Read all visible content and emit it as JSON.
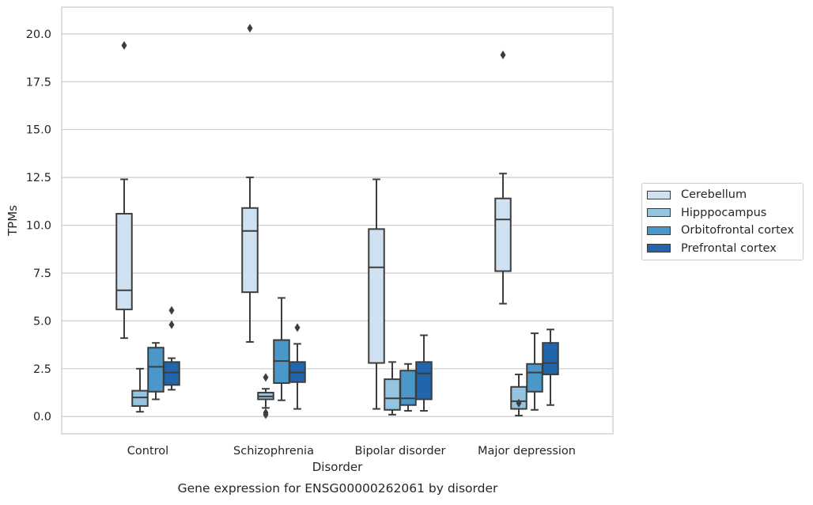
{
  "chart_data": {
    "type": "box",
    "title": "Gene expression for ENSG00000262061 by disorder",
    "xlabel": "Disorder",
    "ylabel": "TPMs",
    "ylim": [
      -0.9,
      21.4
    ],
    "yticks": [
      "0.0",
      "2.5",
      "5.0",
      "7.5",
      "10.0",
      "12.5",
      "15.0",
      "17.5",
      "20.0"
    ],
    "grid": "horizontal",
    "legend_position": "right",
    "categories": [
      "Control",
      "Schizophrenia",
      "Bipolar disorder",
      "Major depression"
    ],
    "series": [
      {
        "name": "Cerebellum",
        "color": "#d0e1f2",
        "boxes": [
          {
            "whisker_low": 4.1,
            "q1": 5.6,
            "median": 6.6,
            "q3": 10.6,
            "whisker_high": 12.4,
            "outliers": [
              19.4
            ]
          },
          {
            "whisker_low": 3.9,
            "q1": 6.5,
            "median": 9.7,
            "q3": 10.9,
            "whisker_high": 12.5,
            "outliers": [
              20.3
            ]
          },
          {
            "whisker_low": 0.4,
            "q1": 2.8,
            "median": 7.8,
            "q3": 9.8,
            "whisker_high": 12.4,
            "outliers": []
          },
          {
            "whisker_low": 5.9,
            "q1": 7.6,
            "median": 10.3,
            "q3": 11.4,
            "whisker_high": 12.7,
            "outliers": [
              18.9
            ]
          }
        ]
      },
      {
        "name": "Hipppocampus",
        "color": "#94c4df",
        "boxes": [
          {
            "whisker_low": 0.25,
            "q1": 0.55,
            "median": 1.0,
            "q3": 1.35,
            "whisker_high": 2.5,
            "outliers": []
          },
          {
            "whisker_low": 0.45,
            "q1": 0.9,
            "median": 1.05,
            "q3": 1.25,
            "whisker_high": 1.45,
            "outliers": [
              2.05,
              0.2,
              0.1
            ]
          },
          {
            "whisker_low": 0.1,
            "q1": 0.35,
            "median": 0.95,
            "q3": 1.95,
            "whisker_high": 2.85,
            "outliers": []
          },
          {
            "whisker_low": 0.05,
            "q1": 0.4,
            "median": 0.8,
            "q3": 1.55,
            "whisker_high": 2.2,
            "outliers": [
              0.7
            ]
          }
        ]
      },
      {
        "name": "Orbitofrontal cortex",
        "color": "#4a98c9",
        "boxes": [
          {
            "whisker_low": 0.9,
            "q1": 1.3,
            "median": 2.6,
            "q3": 3.6,
            "whisker_high": 3.85,
            "outliers": []
          },
          {
            "whisker_low": 0.85,
            "q1": 1.75,
            "median": 2.9,
            "q3": 4.0,
            "whisker_high": 6.2,
            "outliers": []
          },
          {
            "whisker_low": 0.3,
            "q1": 0.6,
            "median": 0.95,
            "q3": 2.4,
            "whisker_high": 2.75,
            "outliers": []
          },
          {
            "whisker_low": 0.35,
            "q1": 1.3,
            "median": 2.3,
            "q3": 2.75,
            "whisker_high": 4.35,
            "outliers": []
          }
        ]
      },
      {
        "name": "Prefrontal cortex",
        "color": "#2166ac",
        "boxes": [
          {
            "whisker_low": 1.4,
            "q1": 1.65,
            "median": 2.3,
            "q3": 2.85,
            "whisker_high": 3.05,
            "outliers": [
              5.55,
              4.8
            ]
          },
          {
            "whisker_low": 0.4,
            "q1": 1.8,
            "median": 2.3,
            "q3": 2.85,
            "whisker_high": 3.8,
            "outliers": [
              4.65
            ]
          },
          {
            "whisker_low": 0.3,
            "q1": 0.9,
            "median": 2.25,
            "q3": 2.85,
            "whisker_high": 4.25,
            "outliers": []
          },
          {
            "whisker_low": 0.6,
            "q1": 2.2,
            "median": 2.8,
            "q3": 3.85,
            "whisker_high": 4.55,
            "outliers": []
          }
        ]
      }
    ]
  }
}
